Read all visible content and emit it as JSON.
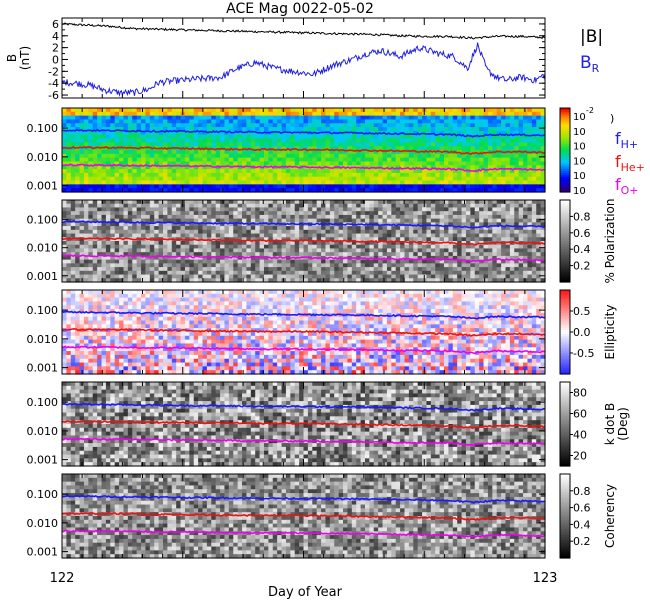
{
  "title": "ACE Mag 0022-05-02",
  "xaxis": {
    "label": "Day of Year",
    "start_label": "122",
    "end_label": "123",
    "range": [
      122,
      123
    ]
  },
  "colors": {
    "total_field": "#000000",
    "radial": "#2020e0",
    "f_h": "#1a1aff",
    "f_he": "#ee1111",
    "f_o": "#ee00ee"
  },
  "chart_data": [
    {
      "type": "line",
      "panel": "magnetic-field",
      "ylabel_main": "B",
      "ylabel_unit": "(nT)",
      "ylim": [
        -6.5,
        7
      ],
      "yticks": [
        "6",
        "4",
        "2",
        "0",
        "-2",
        "-4",
        "-6"
      ],
      "ytick_values": [
        6,
        4,
        2,
        0,
        -2,
        -4,
        -6
      ],
      "series": [
        {
          "name": "|B|",
          "color": "#000000",
          "x": [
            122.0,
            122.05,
            122.1,
            122.15,
            122.2,
            122.25,
            122.3,
            122.35,
            122.4,
            122.45,
            122.5,
            122.55,
            122.6,
            122.65,
            122.7,
            122.75,
            122.8,
            122.85,
            122.9,
            122.95,
            123.0
          ],
          "values": [
            6.0,
            5.8,
            5.6,
            5.2,
            5.1,
            5.0,
            4.9,
            4.8,
            4.7,
            4.6,
            4.5,
            4.4,
            4.3,
            4.2,
            4.0,
            3.9,
            3.9,
            3.6,
            3.9,
            3.9,
            3.7
          ]
        },
        {
          "name": "B_R",
          "color": "#2020e0",
          "x": [
            122.0,
            122.03,
            122.06,
            122.09,
            122.12,
            122.15,
            122.18,
            122.2,
            122.22,
            122.25,
            122.28,
            122.3,
            122.33,
            122.36,
            122.4,
            122.44,
            122.48,
            122.52,
            122.56,
            122.6,
            122.63,
            122.66,
            122.7,
            122.74,
            122.78,
            122.81,
            122.84,
            122.86,
            122.88,
            122.9,
            122.92,
            122.95,
            122.98,
            123.0
          ],
          "values": [
            -3.8,
            -4.0,
            -4.4,
            -5.2,
            -5.6,
            -5.6,
            -5.0,
            -3.9,
            -3.7,
            -3.5,
            -3.3,
            -3.2,
            -3.0,
            -1.6,
            -0.5,
            -1.5,
            -2.0,
            -2.5,
            -1.0,
            0.0,
            1.0,
            1.5,
            0.5,
            2.0,
            1.0,
            0.5,
            -1.5,
            2.5,
            -1.8,
            -3.0,
            -3.5,
            -3.0,
            -3.5,
            -2.5
          ]
        }
      ],
      "legend": [
        {
          "main": "|B|",
          "sub": "",
          "color": "#000000"
        },
        {
          "main": "B",
          "sub": "R",
          "color": "#2020e0"
        }
      ]
    },
    {
      "type": "heatmap",
      "panel": "power",
      "ytick_labels": [
        "0.100",
        "0.010",
        "0.001"
      ],
      "ytick_values": [
        0.1,
        0.01,
        0.001
      ],
      "ylim": [
        0.0006,
        0.5
      ],
      "yscale": "log",
      "colormap": "rainbow",
      "colorbar_labels": [
        "10",
        "10",
        "10",
        "10",
        "10",
        "10"
      ],
      "colorbar_top_exponent": "-2",
      "colorbar_label": ")",
      "legend": [
        {
          "main": "f",
          "sub": "H+",
          "color": "#1a1aff"
        },
        {
          "main": "f",
          "sub": "He+",
          "color": "#ee1111"
        },
        {
          "main": "f",
          "sub": "O+",
          "color": "#ee00ee"
        }
      ]
    },
    {
      "type": "heatmap",
      "panel": "polarization",
      "ytick_labels": [
        "0.100",
        "0.010",
        "0.001"
      ],
      "ytick_values": [
        0.1,
        0.01,
        0.001
      ],
      "ylim": [
        0.0006,
        0.5
      ],
      "yscale": "log",
      "colormap": "grayscale",
      "colorbar_label": "% Polarization",
      "colorbar_ticks": [
        "0.8",
        "0.6",
        "0.4",
        "0.2"
      ],
      "colorbar_range": [
        0,
        1
      ]
    },
    {
      "type": "heatmap",
      "panel": "ellipticity",
      "ytick_labels": [
        "0.100",
        "0.010",
        "0.001"
      ],
      "ytick_values": [
        0.1,
        0.01,
        0.001
      ],
      "ylim": [
        0.0006,
        0.5
      ],
      "yscale": "log",
      "colormap": "blue-white-red",
      "colorbar_label": "Ellipticity",
      "colorbar_ticks": [
        "0.5",
        "0.0",
        "-0.5"
      ],
      "colorbar_range": [
        -1,
        1
      ]
    },
    {
      "type": "heatmap",
      "panel": "k-dot-b",
      "ytick_labels": [
        "0.100",
        "0.010",
        "0.001"
      ],
      "ytick_values": [
        0.1,
        0.01,
        0.001
      ],
      "ylim": [
        0.0006,
        0.5
      ],
      "yscale": "log",
      "colormap": "grayscale",
      "colorbar_label": "k dot B",
      "colorbar_label2": "(Deg)",
      "colorbar_ticks": [
        "80",
        "60",
        "40",
        "20"
      ],
      "colorbar_range": [
        10,
        90
      ]
    },
    {
      "type": "heatmap",
      "panel": "coherency",
      "ytick_labels": [
        "0.100",
        "0.010",
        "0.001"
      ],
      "ytick_values": [
        0.1,
        0.01,
        0.001
      ],
      "ylim": [
        0.0006,
        0.5
      ],
      "yscale": "log",
      "colormap": "grayscale",
      "colorbar_label": "Coherency",
      "colorbar_ticks": [
        "0.8",
        "0.6",
        "0.4",
        "0.2"
      ],
      "colorbar_range": [
        0,
        1
      ]
    }
  ],
  "gyrofrequencies": {
    "x": [
      122.0,
      122.1,
      122.2,
      122.3,
      122.4,
      122.5,
      122.6,
      122.7,
      122.8,
      122.85,
      122.9,
      122.95,
      123.0
    ],
    "f_h": [
      0.085,
      0.082,
      0.078,
      0.075,
      0.072,
      0.07,
      0.068,
      0.064,
      0.06,
      0.052,
      0.06,
      0.058,
      0.056
    ],
    "f_he": [
      0.021,
      0.021,
      0.02,
      0.019,
      0.018,
      0.018,
      0.017,
      0.016,
      0.015,
      0.013,
      0.015,
      0.015,
      0.014
    ],
    "f_o": [
      0.0052,
      0.0051,
      0.0049,
      0.0047,
      0.0045,
      0.0044,
      0.0042,
      0.004,
      0.0038,
      0.0033,
      0.0038,
      0.0037,
      0.0035
    ]
  }
}
